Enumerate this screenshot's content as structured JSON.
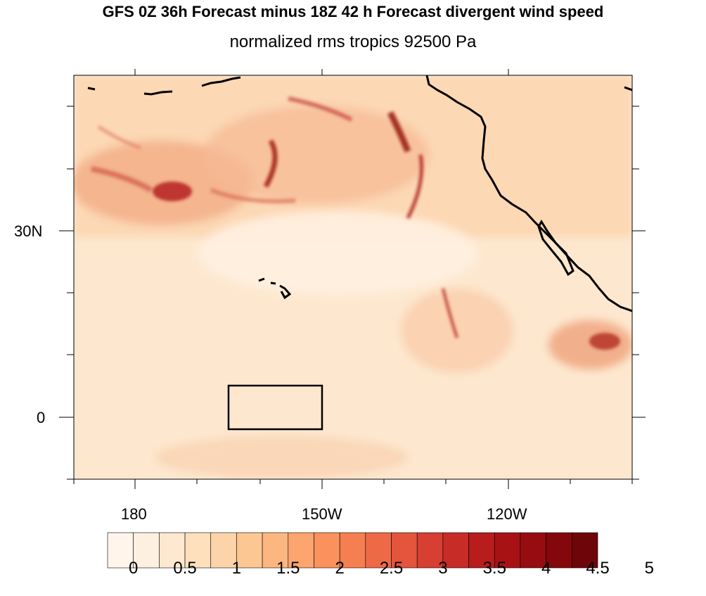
{
  "title": "GFS 0Z 36h Forecast minus 18Z 42 h Forecast divergent wind speed",
  "subtitle": "normalized rms tropics 92500 Pa",
  "lat_labels": [
    "30N",
    "0"
  ],
  "lon_labels": [
    "180",
    "150W",
    "120W"
  ],
  "colorbar": {
    "labels": [
      "0",
      "0.5",
      "1",
      "1.5",
      "2",
      "2.5",
      "3",
      "3.5",
      "4",
      "4.5",
      "5"
    ],
    "colors": [
      "#fff5eb",
      "#fef0e0",
      "#fee8d0",
      "#fee0bd",
      "#fdd4a9",
      "#fdc794",
      "#fcb781",
      "#fca56f",
      "#fb925e",
      "#f67f51",
      "#ee6a47",
      "#e3553d",
      "#d63f32",
      "#c82c27",
      "#b81c1d",
      "#a81215",
      "#960c10",
      "#84080b",
      "#6e0508"
    ]
  },
  "colors": {
    "background": "#fde6cc",
    "coast": "#000000",
    "box": "#000000"
  }
}
